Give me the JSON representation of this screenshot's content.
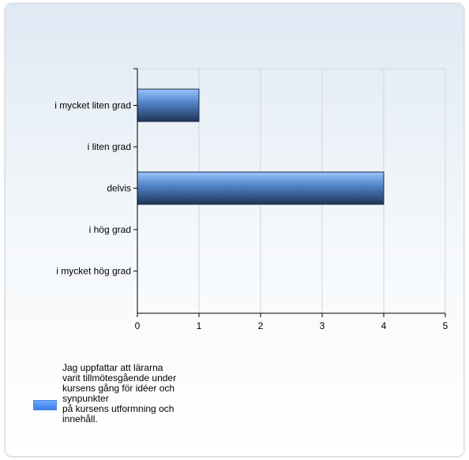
{
  "chart_data": {
    "type": "bar",
    "orientation": "horizontal",
    "categories": [
      "i mycket liten grad",
      "i liten grad",
      "delvis",
      "i hög grad",
      "i mycket hög grad"
    ],
    "series": [
      {
        "name": "Jag uppfattar att lärarna\nvarit tillmötesgående under\nkursens gång för idéer och\nsynpunkter\npå kursens utformning och\ninnehåll.",
        "values": [
          1,
          0,
          4,
          0,
          0
        ],
        "color": "#4a8ef0"
      }
    ],
    "x_ticks": [
      "0",
      "1",
      "2",
      "3",
      "4",
      "5"
    ],
    "xlim": [
      0,
      5
    ],
    "grid": true,
    "legend_position": "bottom-left"
  }
}
